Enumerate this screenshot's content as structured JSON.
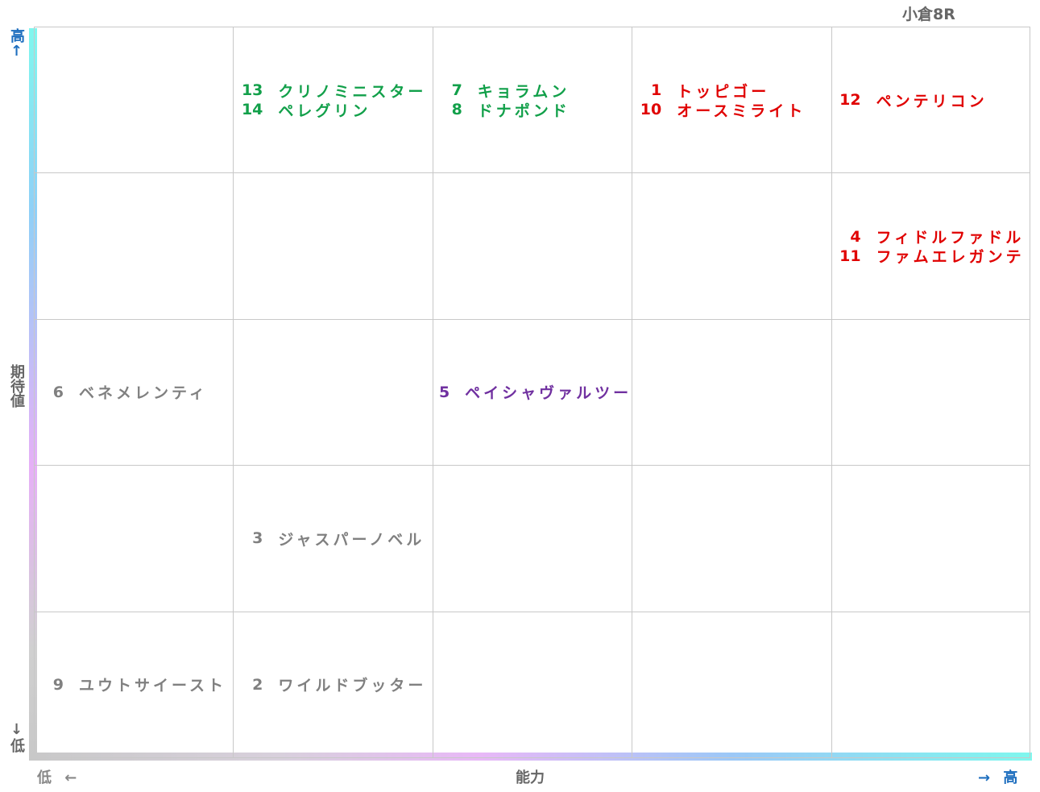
{
  "header": {
    "title": "小倉8R"
  },
  "axes": {
    "y_high": "高↑",
    "y_label": "期待値",
    "y_low": "↓低",
    "x_low": "低 ←",
    "x_label": "能力",
    "x_high": "→ 高"
  },
  "grid": {
    "rows": [
      [
        [],
        [
          {
            "number": 13,
            "name": "クリノミニスター",
            "color": "#12a04a"
          },
          {
            "number": 14,
            "name": "ペレグリン",
            "color": "#12a04a"
          }
        ],
        [
          {
            "number": 7,
            "name": "キョラムン",
            "color": "#12a04a"
          },
          {
            "number": 8,
            "name": "ドナポンド",
            "color": "#12a04a"
          }
        ],
        [
          {
            "number": 1,
            "name": "トッピゴー",
            "color": "#e00000"
          },
          {
            "number": 10,
            "name": "オースミライト",
            "color": "#e00000"
          }
        ],
        [
          {
            "number": 12,
            "name": "ペンテリコン",
            "color": "#e00000"
          }
        ]
      ],
      [
        [],
        [],
        [],
        [],
        [
          {
            "number": 4,
            "name": "フィドルファドル",
            "color": "#e00000"
          },
          {
            "number": 11,
            "name": "ファムエレガンテ",
            "color": "#e00000"
          }
        ]
      ],
      [
        [
          {
            "number": 6,
            "name": "ベネメレンティ",
            "color": "#808080"
          }
        ],
        [],
        [
          {
            "number": 5,
            "name": "ペイシャヴァルツー",
            "color": "#7030a0"
          }
        ],
        [],
        []
      ],
      [
        [],
        [
          {
            "number": 3,
            "name": "ジャスパーノベル",
            "color": "#808080"
          }
        ],
        [],
        [],
        []
      ],
      [
        [
          {
            "number": 9,
            "name": "ユウトサイースト",
            "color": "#808080"
          }
        ],
        [
          {
            "number": 2,
            "name": "ワイルドブッター",
            "color": "#808080"
          }
        ],
        [],
        [],
        []
      ]
    ]
  }
}
